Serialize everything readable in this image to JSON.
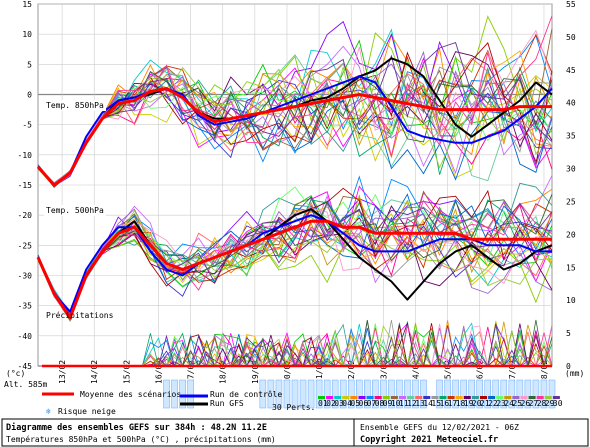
{
  "header": {
    "left_unit": "(°c)",
    "right_unit": "(mm)"
  },
  "labels": {
    "temp850": "Temp. 850hPa",
    "temp500": "Temp. 500hPa",
    "precip": "Précipitations",
    "altitude": "Alt. 585m",
    "snow_glyph": "❄"
  },
  "legend": {
    "mean": "Moyenne des scénarios",
    "control": "Run de contrôle",
    "gfs": "Run GFS",
    "snow_risk": "Risque neige",
    "perts": "30 Perts.",
    "members": [
      "01",
      "02",
      "03",
      "04",
      "05",
      "06",
      "07",
      "08",
      "09",
      "10",
      "11",
      "12",
      "13",
      "14",
      "15",
      "16",
      "17",
      "18",
      "19",
      "20",
      "21",
      "22",
      "23",
      "24",
      "25",
      "26",
      "27",
      "28",
      "29",
      "30"
    ],
    "colors": {
      "mean": "#ff0000",
      "control": "#0000ff",
      "gfs": "#000000",
      "snow": "#3399ff"
    }
  },
  "footer": {
    "title": "Diagramme des ensembles GEFS sur 384h : 48.2N 11.2E",
    "subtitle": "Températures 850hPa et 500hPa (°C) , précipitations (mm)",
    "run": "Ensemble GEFS du 12/02/2021 - 06Z",
    "copyright": "Copyright 2021 Meteociel.fr"
  },
  "chart_data": {
    "type": "line",
    "x_labels": [
      "13/02",
      "14/02",
      "15/02",
      "16/02",
      "17/02",
      "18/02",
      "19/02",
      "20/02",
      "21/02",
      "22/02",
      "23/02",
      "24/02",
      "25/02",
      "26/02",
      "27/02",
      "28/02"
    ],
    "y_left": {
      "ticks": [
        15,
        10,
        5,
        0,
        -5,
        -10,
        -15,
        -20,
        -25,
        -30,
        -35,
        -40,
        -45
      ],
      "range": [
        -45,
        15
      ]
    },
    "y_right": {
      "ticks": [
        55,
        50,
        45,
        40,
        35,
        30,
        25,
        20,
        15,
        10,
        5,
        0
      ],
      "range": [
        0,
        55
      ]
    },
    "x_range_hours": [
      0,
      384
    ],
    "series_850": {
      "mean_hours": [
        0,
        12,
        24,
        36,
        48,
        60,
        72,
        84,
        96,
        108,
        120,
        132,
        144,
        156,
        168,
        180,
        192,
        204,
        216,
        228,
        240,
        252,
        264,
        276,
        288,
        300,
        312,
        324,
        336,
        348,
        360,
        372,
        384
      ],
      "mean": [
        -12,
        -15,
        -13,
        -8,
        -4,
        -1.5,
        -1,
        0.5,
        1,
        -0.5,
        -3,
        -4.5,
        -4,
        -3.5,
        -3,
        -2.5,
        -2,
        -1.5,
        -1,
        -0.5,
        0,
        -0.5,
        -1,
        -1.5,
        -2,
        -2.5,
        -2.5,
        -2.5,
        -2.5,
        -2.5,
        -2,
        -2,
        -2
      ],
      "control": [
        -12,
        -15,
        -13,
        -7,
        -3,
        -1,
        -0.5,
        0.5,
        1,
        0,
        -3.5,
        -5,
        -4.5,
        -4,
        -3,
        -2,
        -1,
        0,
        1,
        2,
        3,
        2,
        -2,
        -6,
        -7,
        -7.5,
        -8,
        -8,
        -7,
        -6,
        -4,
        -2,
        1
      ],
      "gfs": [
        -12,
        -15,
        -13,
        -8,
        -4,
        -1,
        -0.5,
        0,
        1,
        -0.5,
        -3,
        -4,
        -4,
        -3.5,
        -3,
        -2.5,
        -2,
        -1,
        -0.5,
        1,
        3,
        4,
        6,
        5,
        3,
        -1,
        -5,
        -7,
        -5,
        -3,
        -1,
        2,
        0
      ]
    },
    "series_500": {
      "mean": [
        -27,
        -33,
        -37,
        -30,
        -26,
        -23,
        -22,
        -25,
        -28,
        -29,
        -28,
        -27,
        -26,
        -25,
        -24,
        -23,
        -22,
        -21,
        -21,
        -22,
        -22,
        -23,
        -23,
        -23,
        -23,
        -23,
        -23,
        -24,
        -24,
        -24,
        -24,
        -24,
        -24
      ],
      "control": [
        -27,
        -33,
        -36,
        -29,
        -25,
        -22,
        -22,
        -26,
        -29,
        -30,
        -28,
        -27,
        -26,
        -25,
        -23,
        -22,
        -21,
        -20,
        -21,
        -23,
        -25,
        -26,
        -26,
        -26,
        -25,
        -24,
        -24,
        -24,
        -25,
        -25,
        -25,
        -26,
        -26
      ],
      "gfs": [
        -27,
        -33,
        -37,
        -30,
        -26,
        -23,
        -21,
        -25,
        -28,
        -29,
        -28,
        -27,
        -26,
        -25,
        -24,
        -22,
        -20,
        -19,
        -21,
        -24,
        -27,
        -29,
        -31,
        -34,
        -31,
        -28,
        -26,
        -25,
        -27,
        -29,
        -28,
        -26,
        -25
      ]
    },
    "snow_risk_hours": [
      96,
      102,
      108,
      114,
      168,
      174,
      180,
      186,
      192,
      198,
      204,
      210,
      216,
      222,
      228,
      234,
      240,
      246,
      252,
      258,
      264,
      270,
      276,
      282,
      288,
      300,
      306,
      312,
      318,
      324,
      330,
      336,
      342,
      348,
      354,
      360,
      366,
      372,
      378,
      384
    ]
  }
}
